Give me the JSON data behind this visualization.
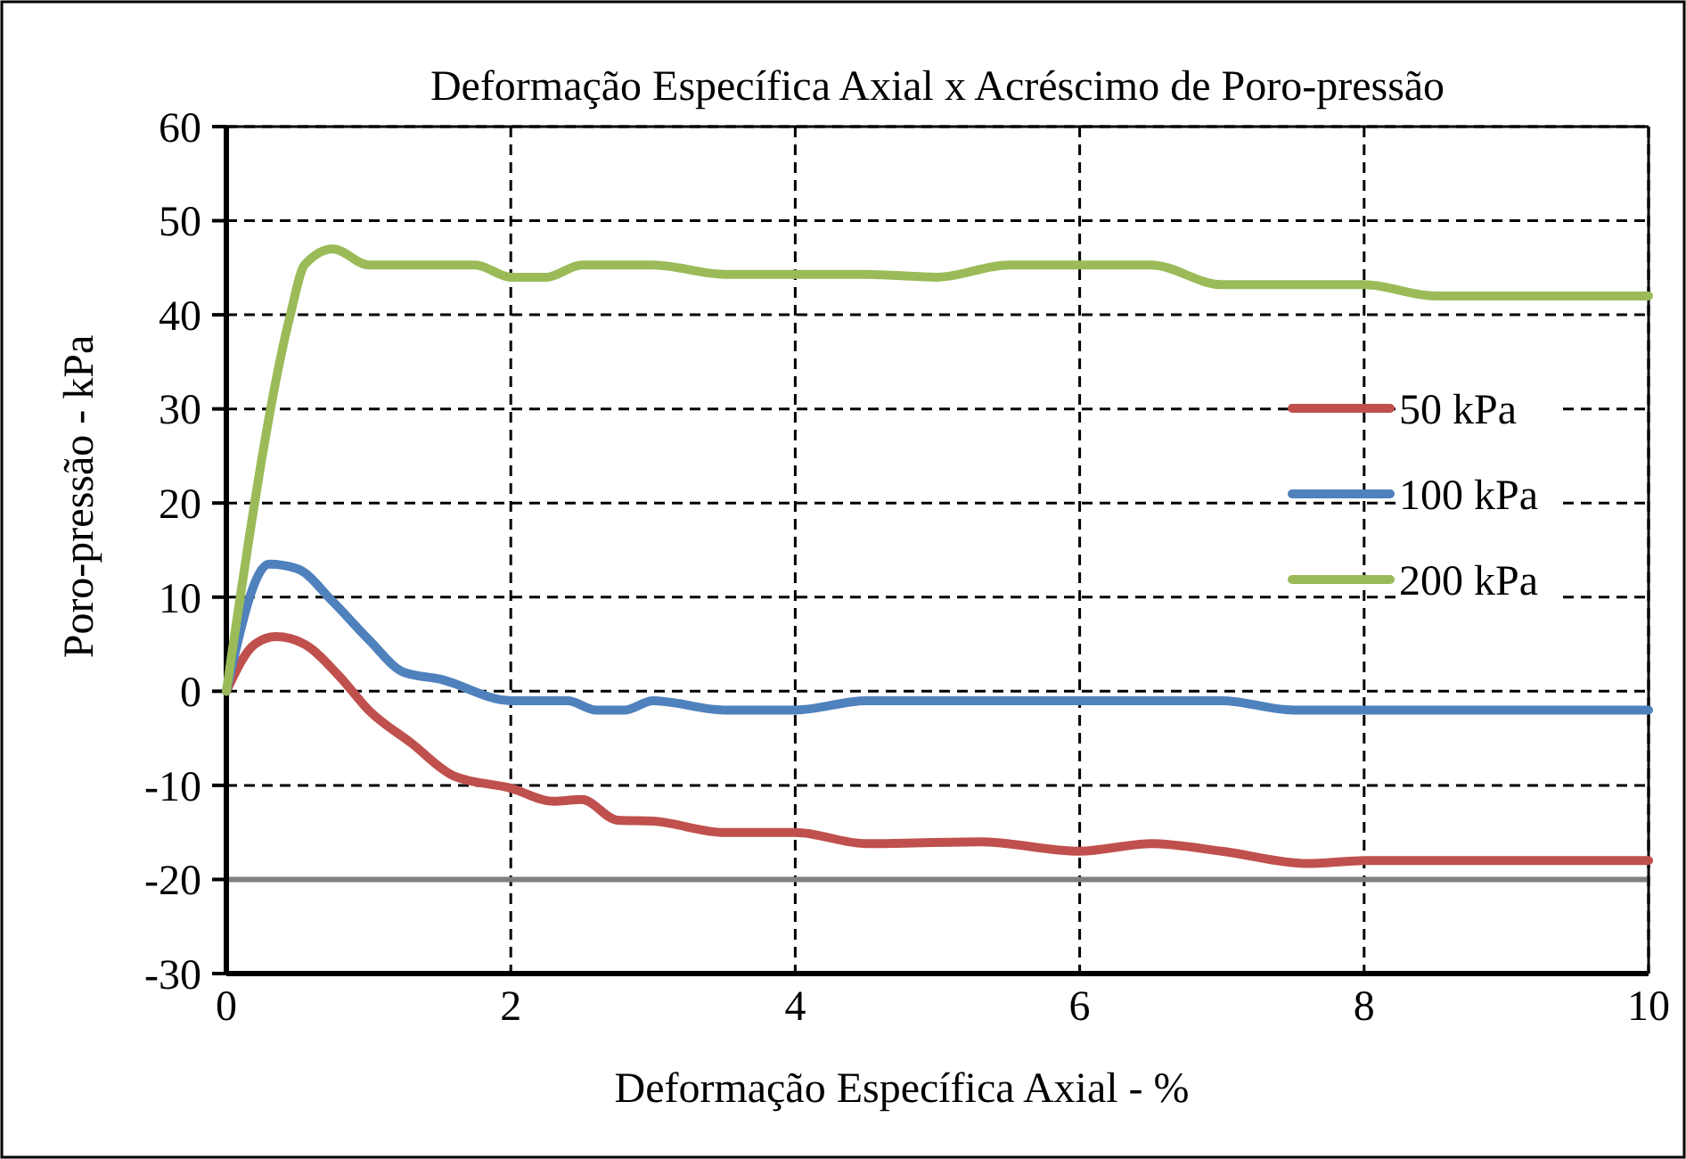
{
  "chart_data": {
    "type": "line",
    "title": "Deformação Específica Axial x Acréscimo de Poro-pressão",
    "xlabel": "Deformação Específica Axial - %",
    "ylabel": "Poro-pressão - kPa",
    "xlim": [
      0,
      10
    ],
    "xticks": [
      0,
      2,
      4,
      6,
      8,
      10
    ],
    "ylim": [
      -30,
      60
    ],
    "yticks": [
      -30,
      -20,
      -10,
      0,
      10,
      20,
      30,
      40,
      50,
      60
    ],
    "grid": true,
    "legend": "right",
    "line_style": "solid",
    "marker": "none",
    "ref_lines": [
      {
        "axis": "y",
        "value": -20,
        "color": "#808080"
      }
    ],
    "series": [
      {
        "name": "50 kPa",
        "color": "#c0504d",
        "x": [
          0,
          0.2,
          0.35,
          0.55,
          0.8,
          1,
          1.3,
          1.6,
          2,
          2.3,
          2.5,
          2.75,
          3,
          3.5,
          4,
          4.5,
          5.3,
          6,
          6.5,
          7,
          7.6,
          8,
          10
        ],
        "values": [
          0,
          5,
          5.8,
          5,
          1.5,
          -2,
          -5.5,
          -9,
          -10.3,
          -11.7,
          -11.5,
          -13.7,
          -13.8,
          -15,
          -15,
          -16.2,
          -16,
          -17,
          -16.2,
          -17,
          -18.3,
          -18,
          -18
        ]
      },
      {
        "name": "100 kPa",
        "color": "#4f81bd",
        "x": [
          0,
          0.3,
          0.5,
          0.75,
          1,
          1.25,
          1.5,
          2,
          2.4,
          2.6,
          2.8,
          3,
          3.5,
          4,
          4.5,
          7,
          7.5,
          10
        ],
        "values": [
          0,
          13.5,
          13,
          9.5,
          5.5,
          2,
          1.3,
          -1,
          -1,
          -2,
          -2,
          -1,
          -2,
          -2,
          -1,
          -1,
          -2,
          -2
        ]
      },
      {
        "name": "200 kPa",
        "color": "#9bbb59",
        "x": [
          0,
          0.45,
          0.55,
          0.75,
          1,
          1.5,
          1.75,
          2,
          2.25,
          2.5,
          3,
          3.5,
          4,
          4.5,
          5,
          5.5,
          6,
          6.5,
          7,
          7.5,
          8,
          8.5,
          9,
          10
        ],
        "values": [
          0,
          40,
          45.3,
          47,
          45.3,
          45.3,
          45.3,
          44,
          44,
          45.3,
          45.3,
          44.3,
          44.3,
          44.3,
          44,
          45.3,
          45.3,
          45.3,
          43.2,
          43.2,
          43.2,
          42,
          42,
          42
        ]
      }
    ]
  }
}
